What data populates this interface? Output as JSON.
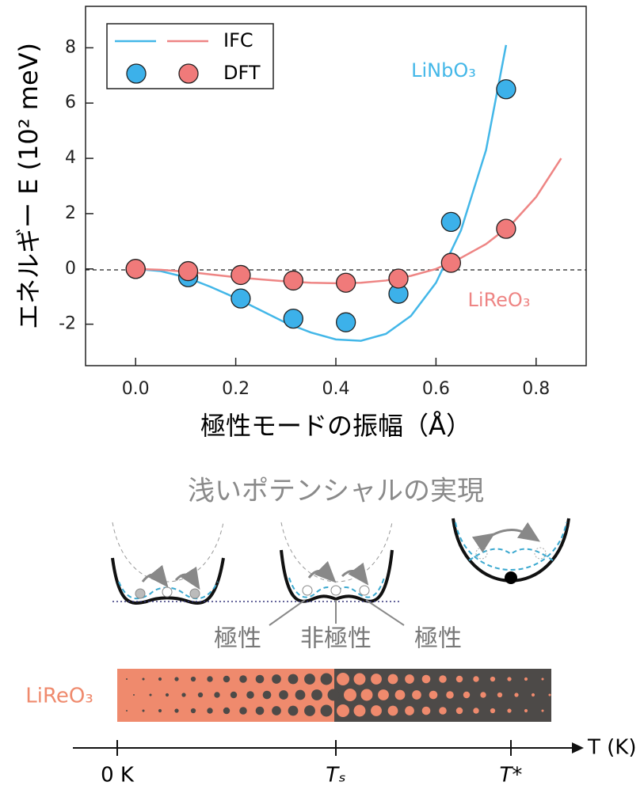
{
  "chart_data": {
    "type": "line",
    "x_label": "極性モードの振幅（Å）",
    "y_label": "エネルギー E (10² meV)",
    "xlim": [
      -0.1,
      0.9
    ],
    "ylim": [
      -3.5,
      9.5
    ],
    "xticks": [
      {
        "value": 0,
        "label": "0.0"
      },
      0.2,
      0.4,
      0.6,
      0.8
    ],
    "yticks": [
      -2,
      0,
      2,
      4,
      6,
      8
    ],
    "series": [
      {
        "name": "IFC",
        "type": "line",
        "color": "#43b7e8",
        "label": "LiNbO₃",
        "x": [
          0,
          0.05,
          0.1,
          0.15,
          0.2,
          0.25,
          0.3,
          0.35,
          0.4,
          0.45,
          0.5,
          0.55,
          0.6,
          0.65,
          0.7,
          0.74
        ],
        "values": [
          0,
          -0.08,
          -0.3,
          -0.65,
          -1.05,
          -1.5,
          -1.95,
          -2.3,
          -2.55,
          -2.6,
          -2.35,
          -1.7,
          -0.5,
          1.4,
          4.3,
          8.1
        ]
      },
      {
        "name": "IFC",
        "type": "line",
        "color": "#ee8584",
        "label": "LiReO₃",
        "x": [
          0,
          0.05,
          0.1,
          0.15,
          0.2,
          0.25,
          0.3,
          0.35,
          0.4,
          0.45,
          0.5,
          0.55,
          0.6,
          0.65,
          0.7,
          0.75,
          0.8,
          0.85
        ],
        "values": [
          0,
          -0.03,
          -0.1,
          -0.2,
          -0.3,
          -0.38,
          -0.45,
          -0.5,
          -0.52,
          -0.5,
          -0.42,
          -0.25,
          0,
          0.4,
          0.9,
          1.6,
          2.6,
          4.0
        ]
      },
      {
        "name": "DFT",
        "type": "scatter",
        "color": "#3cb1ea",
        "x": [
          0,
          0.105,
          0.21,
          0.315,
          0.42,
          0.525,
          0.63,
          0.74
        ],
        "values": [
          0,
          -0.3,
          -1.07,
          -1.8,
          -1.93,
          -0.9,
          1.7,
          6.5
        ]
      },
      {
        "name": "DFT",
        "type": "scatter",
        "color": "#f07a7a",
        "x": [
          0,
          0.105,
          0.21,
          0.315,
          0.42,
          0.525,
          0.63,
          0.74
        ],
        "values": [
          0,
          -0.08,
          -0.22,
          -0.42,
          -0.5,
          -0.35,
          0.22,
          1.45
        ]
      }
    ]
  },
  "diagram": {
    "title": "浅いポテンシャルの実現",
    "labels": [
      "極性",
      "非極性",
      "極性"
    ],
    "material": "LiReO₃",
    "axis_ticks": [
      "0 K",
      "Tₛ",
      "T*"
    ],
    "axis_label": "T (K)"
  }
}
